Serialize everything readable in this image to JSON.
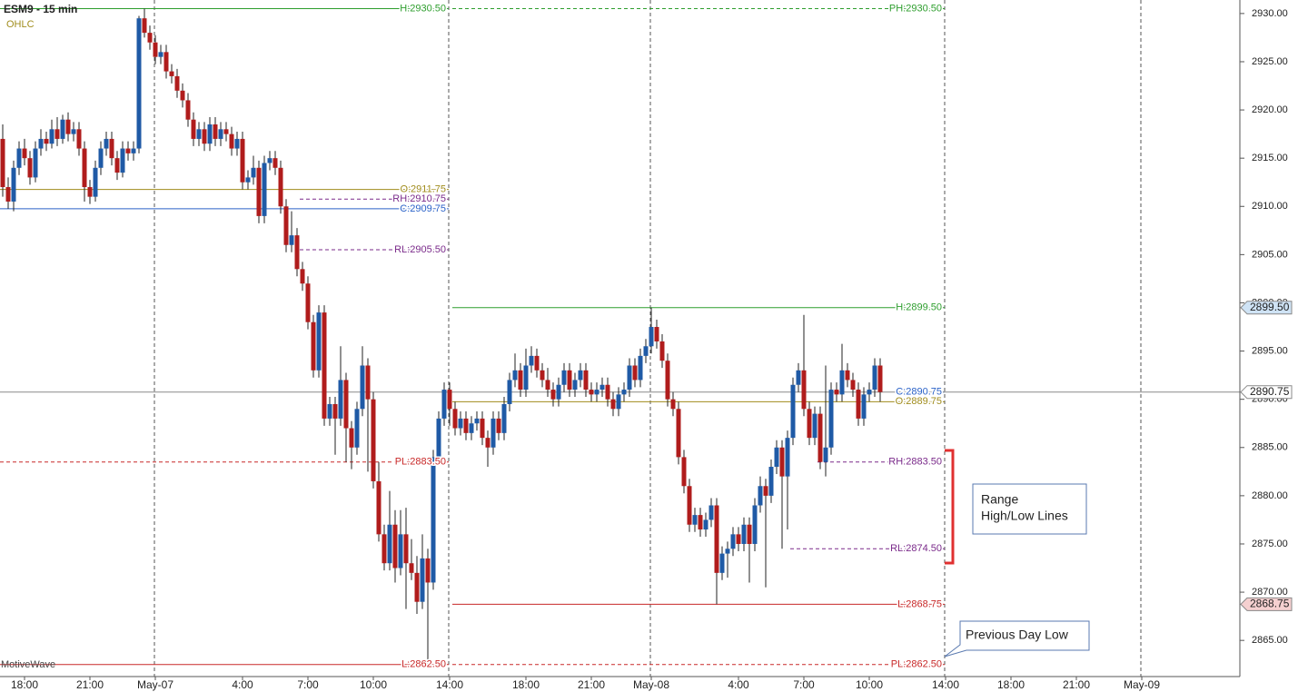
{
  "chart_data": {
    "type": "candlestick",
    "title": "ESM9 - 15 min",
    "subtitle": "OHLC",
    "watermark": "MotiveWave",
    "up_color": "#1f5aa6",
    "down_color": "#b01c1c",
    "ylim": [
      2861.25,
      2931.4
    ],
    "yticks": [
      {
        "value": 2865,
        "label": "2865.00"
      },
      {
        "value": 2870,
        "label": "2870.00"
      },
      {
        "value": 2875,
        "label": "2875.00"
      },
      {
        "value": 2880,
        "label": "2880.00"
      },
      {
        "value": 2885,
        "label": "2885.00"
      },
      {
        "value": 2890,
        "label": "2890.00"
      },
      {
        "value": 2895,
        "label": "2895.00"
      },
      {
        "value": 2900,
        "label": "2900.00"
      },
      {
        "value": 2905,
        "label": "2905.00"
      },
      {
        "value": 2910,
        "label": "2910.00"
      },
      {
        "value": 2915,
        "label": "2915.00"
      },
      {
        "value": 2920,
        "label": "2920.00"
      },
      {
        "value": 2925,
        "label": "2925.00"
      },
      {
        "value": 2930,
        "label": "2930.00"
      }
    ],
    "categories": [
      null,
      null,
      null,
      null,
      "18:00",
      null,
      null,
      null,
      null,
      null,
      null,
      null,
      null,
      null,
      null,
      null,
      "21:00",
      null,
      null,
      null,
      null,
      null,
      null,
      null,
      null,
      null,
      null,
      null,
      "May-07",
      null,
      null,
      null,
      null,
      null,
      null,
      null,
      null,
      null,
      null,
      null,
      null,
      null,
      null,
      null,
      "4:00",
      null,
      null,
      null,
      null,
      null,
      null,
      null,
      null,
      null,
      null,
      null,
      "7:00",
      null,
      null,
      null,
      null,
      null,
      null,
      null,
      null,
      null,
      null,
      null,
      "10:00",
      null,
      null,
      null,
      null,
      null,
      null,
      null,
      null,
      null,
      null,
      null,
      null,
      null,
      "14:00",
      null,
      null,
      null,
      null,
      null,
      null,
      null,
      null,
      null,
      null,
      null,
      null,
      null,
      "18:00",
      null,
      null,
      null,
      null,
      null,
      null,
      null,
      null,
      null,
      null,
      null,
      "21:00",
      null,
      null,
      null,
      null,
      null,
      null,
      null,
      null,
      null,
      null,
      "May-08",
      null,
      null,
      null,
      null,
      null,
      null,
      null,
      null,
      null,
      null,
      null,
      null,
      null,
      null,
      null,
      "4:00",
      null,
      null,
      null,
      null,
      null,
      null,
      null,
      null,
      null,
      null,
      null,
      "7:00",
      null,
      null,
      null,
      null,
      null,
      null,
      null,
      null,
      null,
      null,
      null,
      "10:00",
      null,
      null,
      null,
      null,
      null,
      null,
      null,
      null,
      null,
      null,
      null,
      null,
      null,
      "14:00",
      null,
      null,
      null,
      null,
      null,
      null,
      null,
      null,
      null,
      null,
      null,
      "18:00",
      null,
      null,
      null,
      null,
      null,
      null,
      null,
      null,
      null,
      null,
      null,
      "21:00",
      null,
      null,
      null,
      null,
      null,
      null,
      null,
      null,
      null,
      null,
      null,
      "May-09",
      null,
      null,
      null,
      null,
      null,
      null,
      null,
      null,
      null,
      null,
      null,
      null,
      null,
      null,
      null,
      null
    ],
    "candles": [
      [
        2917,
        2918.5,
        2911,
        2912
      ],
      [
        2912,
        2913,
        2909.75,
        2910.5
      ],
      [
        2910.5,
        2914.75,
        2909.5,
        2914
      ],
      [
        2914,
        2916.75,
        2913.25,
        2916
      ],
      [
        2916,
        2917,
        2914.25,
        2915
      ],
      [
        2915,
        2915.75,
        2912.25,
        2913
      ],
      [
        2913,
        2916.75,
        2912.5,
        2916
      ],
      [
        2916,
        2918,
        2915.25,
        2917
      ],
      [
        2917,
        2917.75,
        2915.75,
        2916.5
      ],
      [
        2916.5,
        2919,
        2916,
        2918
      ],
      [
        2918,
        2919.25,
        2916.25,
        2917
      ],
      [
        2917,
        2919.5,
        2916.5,
        2919
      ],
      [
        2919,
        2919.75,
        2916.75,
        2917.5
      ],
      [
        2917.5,
        2918.75,
        2916.75,
        2918
      ],
      [
        2918,
        2918.75,
        2915.25,
        2916
      ],
      [
        2916,
        2916.75,
        2910.5,
        2912
      ],
      [
        2912,
        2912.75,
        2910.25,
        2911
      ],
      [
        2911,
        2914.75,
        2910.5,
        2914
      ],
      [
        2914,
        2916.75,
        2913.25,
        2916
      ],
      [
        2916,
        2917.75,
        2915.25,
        2917
      ],
      [
        2917,
        2917.75,
        2914.25,
        2915
      ],
      [
        2915,
        2915.75,
        2912.75,
        2913.5
      ],
      [
        2913.5,
        2916.75,
        2913,
        2916
      ],
      [
        2916,
        2916.75,
        2914.75,
        2915.5
      ],
      [
        2915.5,
        2916.75,
        2914.75,
        2916
      ],
      [
        2916,
        2929.75,
        2915.5,
        2929.5
      ],
      [
        2929.5,
        2930.5,
        2927.5,
        2928
      ],
      [
        2928,
        2928.75,
        2926.25,
        2927
      ],
      [
        2927,
        2927.75,
        2924.75,
        2925.5
      ],
      [
        2925.5,
        2926.75,
        2924.75,
        2926
      ],
      [
        2926,
        2926.75,
        2923.25,
        2924
      ],
      [
        2924,
        2924.75,
        2922.75,
        2923.5
      ],
      [
        2923.5,
        2924.25,
        2921.25,
        2922
      ],
      [
        2922,
        2922.75,
        2920.25,
        2921
      ],
      [
        2921,
        2921.75,
        2918.25,
        2919
      ],
      [
        2919,
        2919.75,
        2916.25,
        2917
      ],
      [
        2917,
        2918.75,
        2916.25,
        2918
      ],
      [
        2918,
        2918.75,
        2915.75,
        2916.5
      ],
      [
        2916.5,
        2919.25,
        2915.75,
        2918.5
      ],
      [
        2918.5,
        2919.25,
        2916.25,
        2917
      ],
      [
        2917,
        2918.75,
        2916.25,
        2918
      ],
      [
        2918,
        2918.75,
        2916.75,
        2917.5
      ],
      [
        2917.5,
        2918.25,
        2915.25,
        2916
      ],
      [
        2916,
        2917.75,
        2915.25,
        2917
      ],
      [
        2917,
        2917.75,
        2911.75,
        2912.5
      ],
      [
        2912.5,
        2913.75,
        2911.75,
        2913
      ],
      [
        2913,
        2915.25,
        2912.25,
        2914
      ],
      [
        2914,
        2914.75,
        2908.25,
        2909
      ],
      [
        2909,
        2915.25,
        2908.25,
        2914.5
      ],
      [
        2914.5,
        2915.75,
        2913.75,
        2915
      ],
      [
        2915,
        2915.75,
        2913.25,
        2914
      ],
      [
        2914,
        2914.75,
        2909.25,
        2910
      ],
      [
        2910,
        2910.75,
        2905.25,
        2906
      ],
      [
        2906,
        2909.5,
        2905.25,
        2907
      ],
      [
        2907,
        2907.75,
        2902.75,
        2903.5
      ],
      [
        2903.5,
        2904.25,
        2901.25,
        2902
      ],
      [
        2902,
        2902.75,
        2897.25,
        2898
      ],
      [
        2898,
        2898.75,
        2892.25,
        2893
      ],
      [
        2893,
        2899.75,
        2892.25,
        2899
      ],
      [
        2899,
        2899.75,
        2887.25,
        2888
      ],
      [
        2888,
        2890.25,
        2887.25,
        2889.5
      ],
      [
        2889.5,
        2890.25,
        2884.25,
        2888
      ],
      [
        2888,
        2895.5,
        2887.25,
        2892
      ],
      [
        2892,
        2892.75,
        2883.5,
        2887
      ],
      [
        2887,
        2887.75,
        2882.75,
        2885
      ],
      [
        2885,
        2889.75,
        2884.25,
        2889
      ],
      [
        2889,
        2895.5,
        2888.25,
        2893.5
      ],
      [
        2893.5,
        2894.25,
        2882.5,
        2890
      ],
      [
        2890,
        2890.75,
        2880.75,
        2881.5
      ],
      [
        2881.5,
        2883.5,
        2875.25,
        2876
      ],
      [
        2876,
        2877,
        2872.25,
        2873
      ],
      [
        2873,
        2880.5,
        2872.25,
        2877
      ],
      [
        2877,
        2878.5,
        2871,
        2872.5
      ],
      [
        2872.5,
        2878.5,
        2871.75,
        2876
      ],
      [
        2876,
        2878.75,
        2868.25,
        2873
      ],
      [
        2873,
        2875.5,
        2871.25,
        2872
      ],
      [
        2872,
        2873.75,
        2867.75,
        2869
      ],
      [
        2869,
        2876,
        2868.25,
        2873.5
      ],
      [
        2873.5,
        2874.5,
        2862.5,
        2871
      ],
      [
        2871,
        2884.75,
        2870.25,
        2884
      ],
      [
        2884,
        2888.75,
        2883.25,
        2888
      ],
      [
        2888,
        2891.75,
        2887.25,
        2891
      ],
      [
        2891,
        2891.75,
        2887.25,
        2889
      ],
      [
        2889,
        2889.75,
        2886.25,
        2887
      ],
      [
        2887,
        2888.75,
        2886.25,
        2888
      ],
      [
        2888,
        2888.75,
        2885.75,
        2886.5
      ],
      [
        2886.5,
        2888.25,
        2885.75,
        2887.5
      ],
      [
        2887.5,
        2888.75,
        2886.75,
        2888
      ],
      [
        2888,
        2888.75,
        2885.25,
        2886
      ],
      [
        2886,
        2886.75,
        2883,
        2885
      ],
      [
        2885,
        2888.75,
        2884.25,
        2888
      ],
      [
        2888,
        2888.75,
        2885.75,
        2886.5
      ],
      [
        2886.5,
        2890.25,
        2885.75,
        2889.5
      ],
      [
        2889.5,
        2892.75,
        2888.75,
        2892
      ],
      [
        2892,
        2894.75,
        2891.25,
        2893
      ],
      [
        2893,
        2893.75,
        2890.25,
        2891
      ],
      [
        2891,
        2895.25,
        2890.25,
        2893.5
      ],
      [
        2893.5,
        2895.5,
        2892.75,
        2894.5
      ],
      [
        2894.5,
        2895.25,
        2892.25,
        2893
      ],
      [
        2893,
        2893.75,
        2891.25,
        2892
      ],
      [
        2892,
        2893.25,
        2890.25,
        2891
      ],
      [
        2891,
        2891.75,
        2889.25,
        2890
      ],
      [
        2890,
        2892.25,
        2889.25,
        2891.5
      ],
      [
        2891.5,
        2893.75,
        2890.75,
        2893
      ],
      [
        2893,
        2893.75,
        2890.25,
        2891
      ],
      [
        2891,
        2892.75,
        2890.25,
        2892
      ],
      [
        2892,
        2893.75,
        2891.25,
        2893
      ],
      [
        2893,
        2893.75,
        2890.25,
        2891
      ],
      [
        2891,
        2891.75,
        2889.75,
        2890.5
      ],
      [
        2890.5,
        2891.75,
        2889.75,
        2891
      ],
      [
        2891,
        2892.25,
        2890.25,
        2891.5
      ],
      [
        2891.5,
        2892.25,
        2889.25,
        2890
      ],
      [
        2890,
        2890.75,
        2888.25,
        2889
      ],
      [
        2889,
        2891.25,
        2888.25,
        2890.5
      ],
      [
        2890.5,
        2891.75,
        2889.75,
        2891
      ],
      [
        2891,
        2894.25,
        2890.25,
        2893.5
      ],
      [
        2893.5,
        2894.25,
        2891.25,
        2892
      ],
      [
        2892,
        2895.25,
        2891.25,
        2894.5
      ],
      [
        2894.5,
        2896.25,
        2893.75,
        2895.5
      ],
      [
        2895.5,
        2899.5,
        2894.75,
        2897.5
      ],
      [
        2897.5,
        2898.25,
        2895.25,
        2896
      ],
      [
        2896,
        2896.75,
        2893.25,
        2894
      ],
      [
        2894,
        2894.75,
        2889.25,
        2890
      ],
      [
        2890,
        2890.75,
        2888.25,
        2889
      ],
      [
        2889,
        2889.75,
        2883.25,
        2884
      ],
      [
        2884,
        2884.75,
        2880.25,
        2881
      ],
      [
        2881,
        2881.75,
        2876.25,
        2877
      ],
      [
        2877,
        2878.75,
        2876.25,
        2878
      ],
      [
        2878,
        2878.75,
        2875.75,
        2876.5
      ],
      [
        2876.5,
        2878.25,
        2875.75,
        2877.5
      ],
      [
        2877.5,
        2879.75,
        2876.75,
        2879
      ],
      [
        2879,
        2879.75,
        2868.75,
        2872
      ],
      [
        2872,
        2874.75,
        2871.25,
        2874
      ],
      [
        2874,
        2875.25,
        2871.5,
        2874.5
      ],
      [
        2874.5,
        2876.75,
        2873.75,
        2876
      ],
      [
        2876,
        2876.75,
        2874.25,
        2875
      ],
      [
        2875,
        2877.75,
        2874.25,
        2877
      ],
      [
        2877,
        2877.75,
        2871,
        2875
      ],
      [
        2875,
        2879.75,
        2874.25,
        2879
      ],
      [
        2879,
        2882,
        2878.25,
        2881
      ],
      [
        2881,
        2881.75,
        2870.5,
        2880
      ],
      [
        2880,
        2883.75,
        2879.25,
        2883
      ],
      [
        2883,
        2885.75,
        2882.25,
        2885
      ],
      [
        2885,
        2885.75,
        2874.5,
        2882
      ],
      [
        2882,
        2886.75,
        2876.5,
        2886
      ],
      [
        2886,
        2892.25,
        2885.25,
        2891.5
      ],
      [
        2891.5,
        2893.75,
        2890.75,
        2893
      ],
      [
        2893,
        2898.75,
        2888.25,
        2889
      ],
      [
        2889,
        2889.75,
        2885.25,
        2886
      ],
      [
        2886,
        2889.25,
        2885.25,
        2888.5
      ],
      [
        2888.5,
        2889.25,
        2882.75,
        2883.5
      ],
      [
        2883.5,
        2893.5,
        2882,
        2885
      ],
      [
        2885,
        2891.75,
        2884.25,
        2891
      ],
      [
        2891,
        2891.75,
        2889.75,
        2890.5
      ],
      [
        2890.5,
        2895.75,
        2889.75,
        2893
      ],
      [
        2893,
        2893.75,
        2891.25,
        2892
      ],
      [
        2892,
        2892.75,
        2890.25,
        2891
      ],
      [
        2891,
        2891.75,
        2887.25,
        2888
      ],
      [
        2888,
        2891.25,
        2887.25,
        2890.5
      ],
      [
        2890.5,
        2891.75,
        2889.75,
        2891
      ],
      [
        2891,
        2894.25,
        2890.25,
        2893.5
      ],
      [
        2893.5,
        2894.25,
        2889.75,
        2890.75
      ]
    ],
    "levels": [
      {
        "label": "H:2930.50",
        "value": 2930.5,
        "color": "#2e9e2e",
        "dashed": false
      },
      {
        "label": "PH:2930.50",
        "value": 2930.5,
        "color": "#2e9e2e",
        "dashed": true
      },
      {
        "label": "O:2911.75",
        "value": 2911.75,
        "color": "#a08c1c",
        "dashed": false
      },
      {
        "label": "RH:2910.75",
        "value": 2910.75,
        "color": "#7a2a8a",
        "dashed": true
      },
      {
        "label": "C:2909.75",
        "value": 2909.75,
        "color": "#2a62c8",
        "dashed": false
      },
      {
        "label": "RL:2905.50",
        "value": 2905.5,
        "color": "#7a2a8a",
        "dashed": true
      },
      {
        "label": "H:2899.50",
        "value": 2899.5,
        "color": "#2e9e2e",
        "dashed": false
      },
      {
        "label": "C:2890.75",
        "value": 2890.75,
        "color": "#2a62c8",
        "dashed": false
      },
      {
        "label": "O:2889.75",
        "value": 2889.75,
        "color": "#a08c1c",
        "dashed": false
      },
      {
        "label": "PL:2883.50",
        "value": 2883.5,
        "color": "#c82828",
        "dashed": true
      },
      {
        "label": "RH:2883.50",
        "value": 2883.5,
        "color": "#7a2a8a",
        "dashed": true
      },
      {
        "label": "RL:2874.50",
        "value": 2874.5,
        "color": "#7a2a8a",
        "dashed": true
      },
      {
        "label": "L:2868.75",
        "value": 2868.75,
        "color": "#c82828",
        "dashed": false
      },
      {
        "label": "L:2862.50",
        "value": 2862.5,
        "color": "#c82828",
        "dashed": false
      },
      {
        "label": "PL:2862.50",
        "value": 2862.5,
        "color": "#c82828",
        "dashed": true
      }
    ],
    "last_price": {
      "value": 2890.75,
      "label": "2890.75",
      "color": "#8a8a8a"
    },
    "price_tags": [
      {
        "value": 2899.5,
        "label": "2899.50",
        "color": "#cfe3f5"
      },
      {
        "value": 2868.75,
        "label": "2868.75",
        "color": "#f5d0d0"
      }
    ],
    "annotations": [
      "Range",
      "High/Low Lines",
      "Previous Day Low"
    ]
  }
}
